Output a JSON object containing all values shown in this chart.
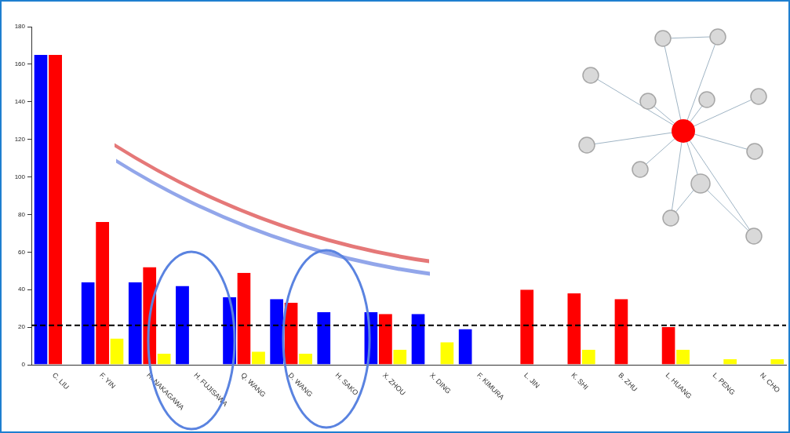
{
  "chart_data": {
    "type": "bar",
    "categories": [
      "C. LIU",
      "F. YIN",
      "H. NAKAGAWA",
      "H. FUJISAWA",
      "Q. WANG",
      "D. WANG",
      "H. SAKO",
      "X. ZHOU",
      "X. DING",
      "F. KIMURA",
      "L. JIN",
      "K. SHI",
      "B. ZHU",
      "L. HUANG",
      "L. PENG",
      "N. CHO"
    ],
    "series": [
      {
        "color": "#0000ff",
        "values": [
          165,
          44,
          44,
          42,
          36,
          35,
          28,
          28,
          27,
          19,
          null,
          null,
          null,
          null,
          null,
          null
        ]
      },
      {
        "color": "#ff0000",
        "values": [
          165,
          76,
          52,
          null,
          49,
          33,
          null,
          27,
          null,
          null,
          40,
          38,
          35,
          20,
          null,
          null
        ]
      },
      {
        "color": "#ffff00",
        "values": [
          null,
          14,
          6,
          null,
          7,
          6,
          null,
          8,
          12,
          null,
          null,
          8,
          null,
          8,
          3,
          3
        ]
      }
    ],
    "ylim": [
      0,
      180
    ],
    "yticks": [
      0,
      20,
      40,
      60,
      80,
      100,
      120,
      140,
      160,
      180
    ],
    "ref_lines": [
      {
        "axis": "y",
        "value": 21,
        "color": "#000000",
        "line_style": "dashed"
      }
    ],
    "grid": false,
    "legend": false
  }
}
